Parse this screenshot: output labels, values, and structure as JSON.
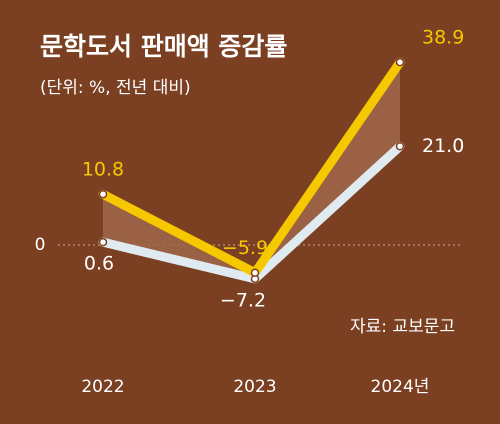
{
  "chart_data": {
    "type": "line",
    "title": "문학도서 판매액 증감률",
    "subtitle": "(단위: %, 전년 대비)",
    "source": "자료: 교보문고",
    "categories": [
      "2022",
      "2023",
      "2024년"
    ],
    "series": [
      {
        "color": "#f6c800",
        "values": [
          10.8,
          -5.9,
          38.9
        ],
        "value_labels": [
          "10.8",
          "−5.9",
          "38.9"
        ]
      },
      {
        "color": "#dfeaf1",
        "values": [
          0.6,
          -7.2,
          21.0
        ],
        "value_labels": [
          "0.6",
          "−7.2",
          "21.0"
        ]
      }
    ],
    "ylim": [
      -22,
      44
    ],
    "yticks": [
      0
    ]
  }
}
